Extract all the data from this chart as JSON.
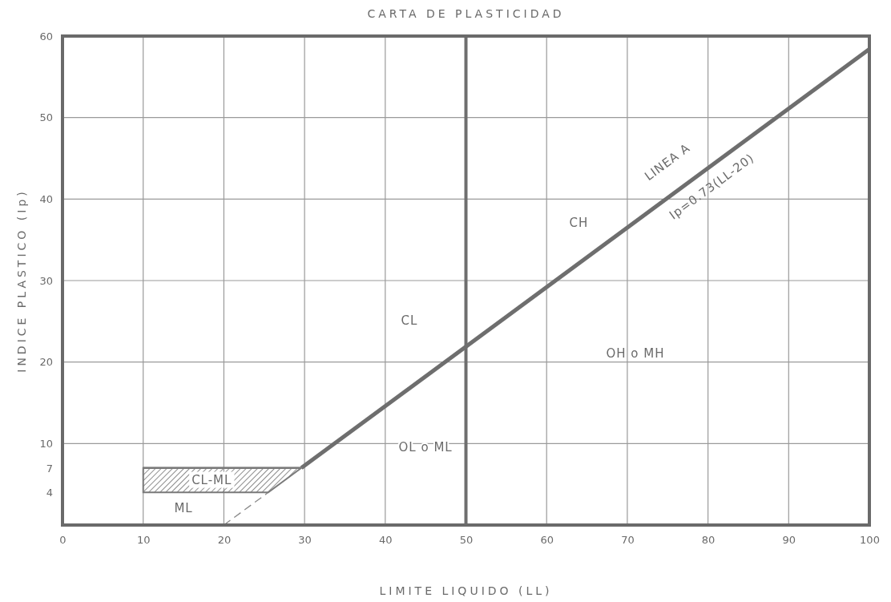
{
  "chart_data": {
    "type": "line",
    "title": "CARTA DE PLASTICIDAD",
    "xlabel": "LIMITE LIQUIDO (LL)",
    "ylabel": "INDICE PLASTICO (Ip)",
    "xlim": [
      0,
      100
    ],
    "ylim": [
      0,
      60
    ],
    "xticks": [
      0,
      10,
      20,
      30,
      40,
      50,
      60,
      70,
      80,
      90,
      100
    ],
    "yticks": [
      4,
      7,
      10,
      20,
      30,
      40,
      50,
      60
    ],
    "grid": true,
    "series": [
      {
        "color": "#6e6e6e",
        "x": [
          29.6,
          100
        ],
        "values": [
          7,
          58.4
        ]
      },
      {
        "color": "#8a8a8a",
        "line_style": "dashed",
        "x": [
          20,
          25.5
        ],
        "values": [
          0,
          4
        ]
      },
      {
        "color": "#7a7a7a",
        "x": [
          10,
          25.5,
          29.6
        ],
        "values": [
          7,
          7,
          7
        ],
        "lower": [
          4,
          4,
          7
        ],
        "upper": [
          7,
          7,
          7
        ]
      }
    ],
    "ref_lines": [
      {
        "axis": "x",
        "value": 50,
        "color": "#6e6e6e"
      }
    ],
    "annotations": [
      "CL",
      "CH",
      "OH o MH",
      "OL o ML",
      "ML",
      "CL-ML",
      "LINEA A",
      "Ip=0.73(LL-20)"
    ]
  }
}
